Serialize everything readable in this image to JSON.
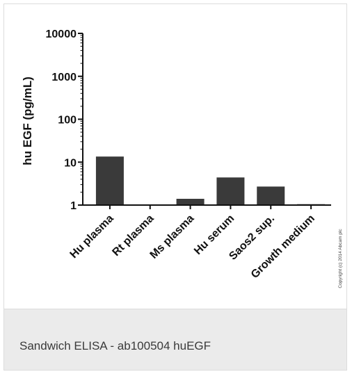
{
  "chart_data": {
    "type": "bar",
    "ylabel": "hu EGF (pg/mL)",
    "xlabel": "",
    "yscale": "log",
    "ylim": [
      1,
      10000
    ],
    "yticks": [
      "1",
      "10",
      "100",
      "1000",
      "10000"
    ],
    "categories": [
      "Hu plasma",
      "Rt plasma",
      "Ms plasma",
      "Hu serum",
      "Saos2 sup.",
      "Growth medium"
    ],
    "values": [
      13.5,
      1.0,
      1.4,
      4.4,
      2.7,
      1.05
    ],
    "bar_color": "#3a3a3a",
    "grid": false
  },
  "copyright": "Copyright (c) 2014 Abcam plc",
  "caption": "Sandwich ELISA - ab100504 huEGF"
}
